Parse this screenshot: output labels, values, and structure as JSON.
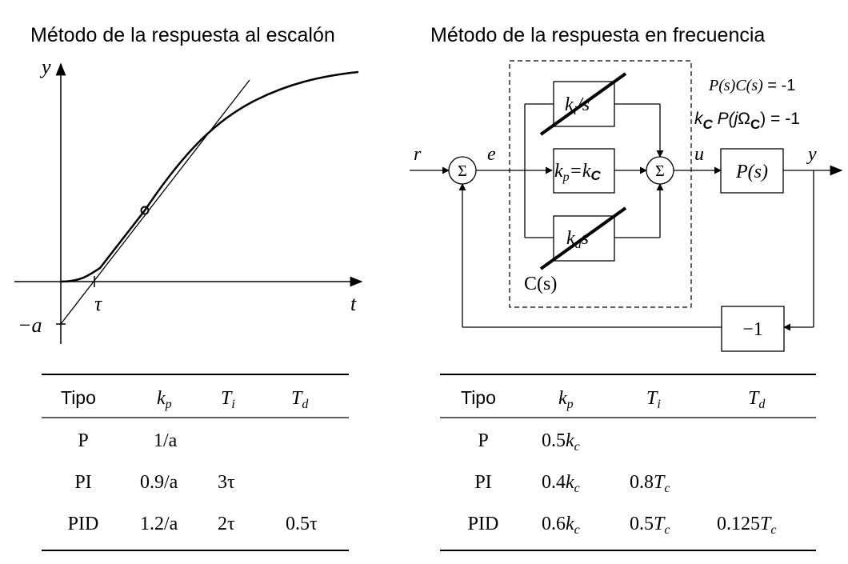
{
  "left": {
    "title": "Método de la respuesta al escalón",
    "graph": {
      "y_axis_label": "y",
      "x_axis_label": "t",
      "tau_label": "τ",
      "intercept_label": "−a"
    },
    "table": {
      "header": {
        "tipo": "Tipo",
        "kp_base": "k",
        "kp_sub": "p",
        "ti_base": "T",
        "ti_sub": "i",
        "td_base": "T",
        "td_sub": "d"
      },
      "rows": [
        {
          "tipo": "P",
          "kp": "1/a",
          "ti": "",
          "td": ""
        },
        {
          "tipo": "PI",
          "kp": "0.9/a",
          "ti": "3τ",
          "td": ""
        },
        {
          "tipo": "PID",
          "kp": "1.2/a",
          "ti": "2τ",
          "td": "0.5τ"
        }
      ]
    }
  },
  "right": {
    "title": "Método de la respuesta en frecuencia",
    "diagram": {
      "signal_r": "r",
      "signal_e": "e",
      "signal_u": "u",
      "signal_y": "y",
      "sum_symbol": "Σ",
      "ki_block": {
        "base": "k",
        "sub": "i",
        "tail": "/s"
      },
      "kp_block": {
        "base": "k",
        "sub": "p",
        "mid": "=k",
        "sub2": "C"
      },
      "kd_block": {
        "base": "k",
        "sub": "d",
        "tail": "s"
      },
      "plant": "P(s)",
      "feedback_gain": "−1",
      "controller_label": "C(s)",
      "eq1_lhs": "P(s)C(s)",
      "eq1_rhs": " = -1",
      "eq2_k": "k",
      "eq2_ksub": "C",
      "eq2_p": "P(",
      "eq2_j": "j",
      "eq2_omega": "Ω",
      "eq2_omegasub": "C",
      "eq2_rhs": ") = -1"
    },
    "table": {
      "header": {
        "tipo": "Tipo",
        "kp_base": "k",
        "kp_sub": "p",
        "ti_base": "T",
        "ti_sub": "i",
        "td_base": "T",
        "td_sub": "d"
      },
      "rows": [
        {
          "tipo": "P",
          "kp_coef": "0.5",
          "kp_base": "k",
          "kp_sub": "c",
          "ti_coef": "",
          "ti_base": "",
          "ti_sub": "",
          "td_coef": "",
          "td_base": "",
          "td_sub": ""
        },
        {
          "tipo": "PI",
          "kp_coef": "0.4",
          "kp_base": "k",
          "kp_sub": "c",
          "ti_coef": "0.8",
          "ti_base": "T",
          "ti_sub": "c",
          "td_coef": "",
          "td_base": "",
          "td_sub": ""
        },
        {
          "tipo": "PID",
          "kp_coef": "0.6",
          "kp_base": "k",
          "kp_sub": "c",
          "ti_coef": "0.5",
          "ti_base": "T",
          "ti_sub": "c",
          "td_coef": "0.125",
          "td_base": "T",
          "td_sub": "c"
        }
      ]
    }
  }
}
